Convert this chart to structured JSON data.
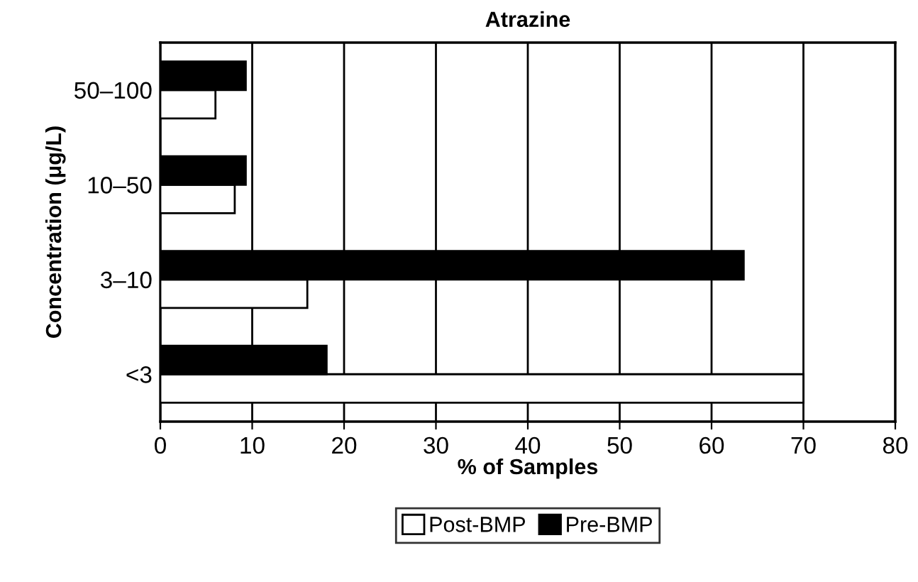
{
  "chart_data": {
    "type": "bar",
    "orientation": "horizontal",
    "title": "Atrazine",
    "xlabel": "% of Samples",
    "ylabel": "Concentration (μg/L)",
    "categories": [
      "50–100",
      "10–50",
      "3–10",
      "<3"
    ],
    "series": [
      {
        "name": "Post-BMP",
        "color": "#ffffff",
        "values": [
          6.0,
          8.1,
          16.0,
          70
        ]
      },
      {
        "name": "Pre-BMP",
        "color": "#000000",
        "values": [
          9.3,
          9.3,
          63.5,
          18.1
        ]
      }
    ],
    "xlim": [
      0,
      80
    ],
    "xticks": [
      0,
      10,
      20,
      30,
      40,
      50,
      60,
      70,
      80
    ],
    "grid": "x",
    "legend": "bottom"
  }
}
